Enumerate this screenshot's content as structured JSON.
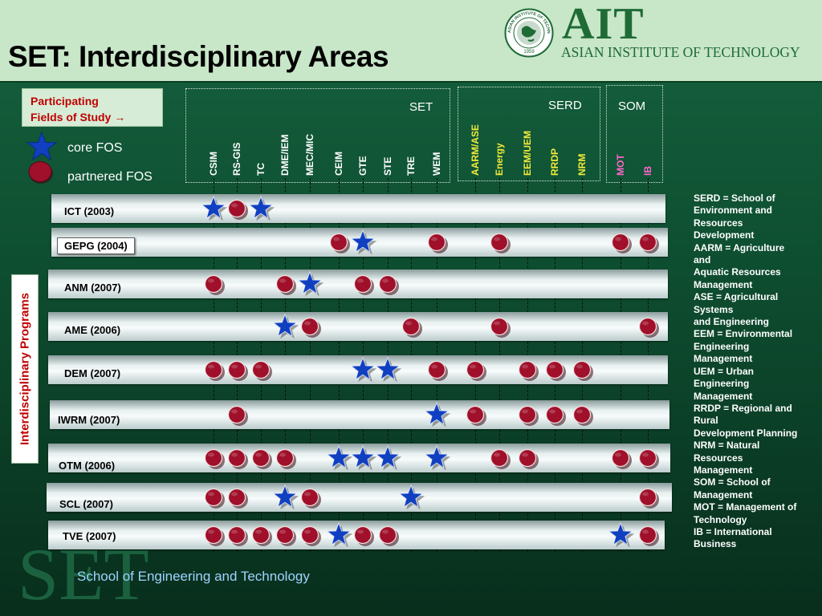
{
  "header": {
    "title": "SET: Interdisciplinary Areas",
    "logo_text": "AIT",
    "logo_subtitle": "ASIAN INSTITUTE OF TECHNOLOGY",
    "seal_text_top": "ASIAN INSTITUTE OF TECHNOLOGY",
    "seal_year": "1959"
  },
  "legend": {
    "participating_line1": "Participating",
    "participating_line2": "Fields of Study →",
    "core_label": "core FOS",
    "partnered_label": "partnered FOS"
  },
  "groups": [
    {
      "name": "SET"
    },
    {
      "name": "SERD"
    },
    {
      "name": "SOM"
    }
  ],
  "columns": [
    {
      "id": "CSIM",
      "label": "CSIM",
      "group": "SET",
      "color": "#ffffff"
    },
    {
      "id": "RS-GIS",
      "label": "RS-GIS",
      "group": "SET",
      "color": "#ffffff"
    },
    {
      "id": "TC",
      "label": "TC",
      "group": "SET",
      "color": "#ffffff"
    },
    {
      "id": "DME/IEM",
      "label": "DME/IEM",
      "group": "SET",
      "color": "#ffffff"
    },
    {
      "id": "MEC/MIC",
      "label": "MEC/MIC",
      "group": "SET",
      "color": "#ffffff"
    },
    {
      "id": "CEIM",
      "label": "CEIM",
      "group": "SET",
      "color": "#ffffff"
    },
    {
      "id": "GTE",
      "label": "GTE",
      "group": "SET",
      "color": "#ffffff"
    },
    {
      "id": "STE",
      "label": "STE",
      "group": "SET",
      "color": "#ffffff"
    },
    {
      "id": "TRE",
      "label": "TRE",
      "group": "SET",
      "color": "#ffffff"
    },
    {
      "id": "WEM",
      "label": "WEM",
      "group": "SET",
      "color": "#ffffff"
    },
    {
      "id": "AARM/ASE",
      "label": "AARM/ASE",
      "group": "SERD",
      "color": "#f2ea3a"
    },
    {
      "id": "Energy",
      "label": "Energy",
      "group": "SERD",
      "color": "#f2ea3a"
    },
    {
      "id": "EEM/UEM",
      "label": "EEM/UEM",
      "group": "SERD",
      "color": "#f2ea3a"
    },
    {
      "id": "RRDP",
      "label": "RRDP",
      "group": "SERD",
      "color": "#f2ea3a"
    },
    {
      "id": "NRM",
      "label": "NRM",
      "group": "SERD",
      "color": "#f2ea3a"
    },
    {
      "id": "MOT",
      "label": "MOT",
      "group": "SOM",
      "color": "#ff66cc"
    },
    {
      "id": "IB",
      "label": "IB",
      "group": "SOM",
      "color": "#ff66cc"
    }
  ],
  "programs": [
    {
      "label": "ICT (2003)",
      "boxed": false,
      "core": [
        "CSIM",
        "TC"
      ],
      "partnered": [
        "RS-GIS"
      ]
    },
    {
      "label": "GEPG (2004)",
      "boxed": true,
      "core": [
        "GTE"
      ],
      "partnered": [
        "CEIM",
        "WEM",
        "Energy",
        "MOT",
        "IB"
      ]
    },
    {
      "label": "ANM (2007)",
      "boxed": false,
      "core": [
        "MEC/MIC"
      ],
      "partnered": [
        "CSIM",
        "DME/IEM",
        "GTE",
        "STE"
      ]
    },
    {
      "label": "AME (2006)",
      "boxed": false,
      "core": [
        "DME/IEM"
      ],
      "partnered": [
        "MEC/MIC",
        "TRE",
        "Energy",
        "IB"
      ]
    },
    {
      "label": "DEM (2007)",
      "boxed": false,
      "core": [
        "GTE",
        "STE"
      ],
      "partnered": [
        "CSIM",
        "RS-GIS",
        "TC",
        "WEM",
        "AARM/ASE",
        "EEM/UEM",
        "RRDP",
        "NRM"
      ]
    },
    {
      "label": "IWRM (2007)",
      "boxed": false,
      "core": [
        "WEM"
      ],
      "partnered": [
        "RS-GIS",
        "AARM/ASE",
        "EEM/UEM",
        "RRDP",
        "NRM"
      ]
    },
    {
      "label": "OTM (2006)",
      "boxed": false,
      "core": [
        "CEIM",
        "GTE",
        "STE",
        "WEM"
      ],
      "partnered": [
        "CSIM",
        "RS-GIS",
        "TC",
        "DME/IEM",
        "Energy",
        "EEM/UEM",
        "MOT",
        "IB"
      ]
    },
    {
      "label": "SCL (2007)",
      "boxed": false,
      "core": [
        "DME/IEM",
        "TRE"
      ],
      "partnered": [
        "CSIM",
        "RS-GIS",
        "MEC/MIC",
        "IB"
      ]
    },
    {
      "label": "TVE (2007)",
      "boxed": false,
      "core": [
        "CEIM",
        "MOT"
      ],
      "partnered": [
        "CSIM",
        "RS-GIS",
        "TC",
        "DME/IEM",
        "MEC/MIC",
        "GTE",
        "STE",
        "IB"
      ]
    }
  ],
  "side_label": "Interdisciplinary Programs",
  "abbreviations": [
    "SERD = School of",
    "Environment and",
    "Resources",
    "Development",
    "AARM = Agriculture",
    "and",
    "Aquatic Resources",
    "Management",
    "ASE = Agricultural",
    "Systems",
    "and Engineering",
    "EEM = Environmental",
    "Engineering",
    "Management",
    "UEM = Urban",
    "Engineering",
    "Management",
    "RRDP = Regional and",
    "Rural",
    "Development Planning",
    "NRM = Natural",
    "Resources",
    "Management",
    "SOM = School of",
    "Management",
    "MOT = Management of",
    "Technology",
    "IB = International",
    "Business"
  ],
  "watermark": "SET",
  "footer": "School of Engineering and Technology",
  "colors": {
    "core_star": "#1040c0",
    "partner_dot": "#a0102a",
    "serd_labels": "#f2ea3a",
    "som_labels": "#ff66cc",
    "accent_red": "#c00000"
  }
}
